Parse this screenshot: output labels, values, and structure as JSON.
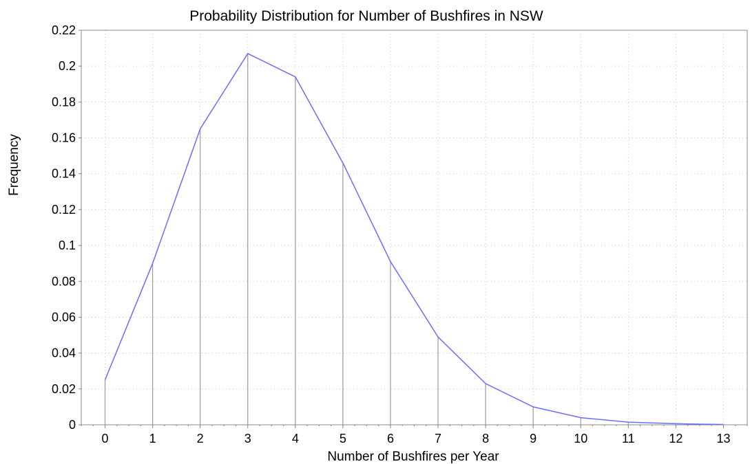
{
  "chart_data": {
    "type": "line",
    "title": "Probability Distribution for Number of Bushfires in NSW",
    "xlabel": "Number of Bushfires per Year",
    "ylabel": "Frequency",
    "x": [
      0,
      1,
      2,
      3,
      4,
      5,
      6,
      7,
      8,
      9,
      10,
      11,
      12,
      13
    ],
    "series": [
      {
        "values": [
          0.025,
          0.09,
          0.165,
          0.207,
          0.194,
          0.146,
          0.091,
          0.049,
          0.023,
          0.01,
          0.004,
          0.0015,
          0.0006,
          0.0002
        ]
      }
    ],
    "xlim": [
      -0.5,
      13.5
    ],
    "ylim": [
      0,
      0.22
    ],
    "xticks": [
      "0",
      "1",
      "2",
      "3",
      "4",
      "5",
      "6",
      "7",
      "8",
      "9",
      "10",
      "11",
      "12",
      "13"
    ],
    "yticks": [
      "0",
      "0.02",
      "0.04",
      "0.06",
      "0.08",
      "0.1",
      "0.12",
      "0.14",
      "0.16",
      "0.18",
      "0.2",
      "0.22"
    ],
    "grid": true,
    "stems": true,
    "colors": {
      "line": "#6b6bff",
      "stem": "#9a9a9a",
      "grid": "#c8c8c8",
      "axis": "#888888"
    }
  }
}
